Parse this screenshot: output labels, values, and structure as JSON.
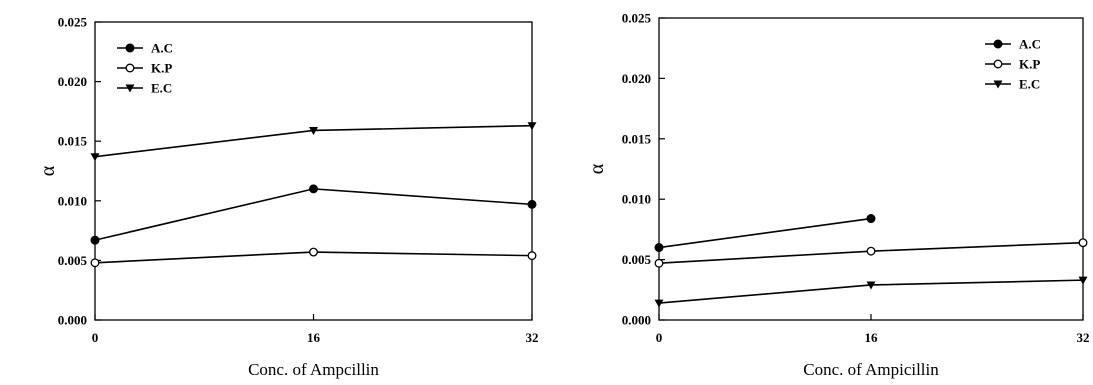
{
  "chart_data": [
    {
      "type": "line",
      "title": "",
      "xlabel": "Conc. of Ampcillin",
      "ylabel": "α",
      "x": [
        0,
        16,
        32
      ],
      "xticks": [
        "0",
        "16",
        "32"
      ],
      "ylim": [
        0,
        0.025
      ],
      "yticks": [
        "0.000",
        "0.005",
        "0.010",
        "0.015",
        "0.020",
        "0.025"
      ],
      "grid": false,
      "legend_position": "top-left",
      "series": [
        {
          "name": "A.C",
          "marker": "filled-circle",
          "values": [
            0.0067,
            0.011,
            0.0097
          ]
        },
        {
          "name": "K.P",
          "marker": "open-circle",
          "values": [
            0.0048,
            0.0057,
            0.0054
          ]
        },
        {
          "name": "E.C",
          "marker": "filled-triangle-down",
          "values": [
            0.0137,
            0.0159,
            0.0163
          ]
        }
      ]
    },
    {
      "type": "line",
      "title": "",
      "xlabel": "Conc. of Ampicillin",
      "ylabel": "α",
      "x": [
        0,
        16,
        32
      ],
      "xticks": [
        "0",
        "16",
        "32"
      ],
      "ylim": [
        0,
        0.025
      ],
      "yticks": [
        "0.000",
        "0.005",
        "0.010",
        "0.015",
        "0.020",
        "0.025"
      ],
      "grid": false,
      "legend_position": "top-right",
      "series": [
        {
          "name": "A.C",
          "marker": "filled-circle",
          "values": [
            0.006,
            0.0084,
            null
          ]
        },
        {
          "name": "K.P",
          "marker": "open-circle",
          "values": [
            0.0047,
            0.0057,
            0.0064
          ]
        },
        {
          "name": "E.C",
          "marker": "filled-triangle-down",
          "values": [
            0.0014,
            0.0029,
            0.0033
          ]
        }
      ]
    }
  ]
}
